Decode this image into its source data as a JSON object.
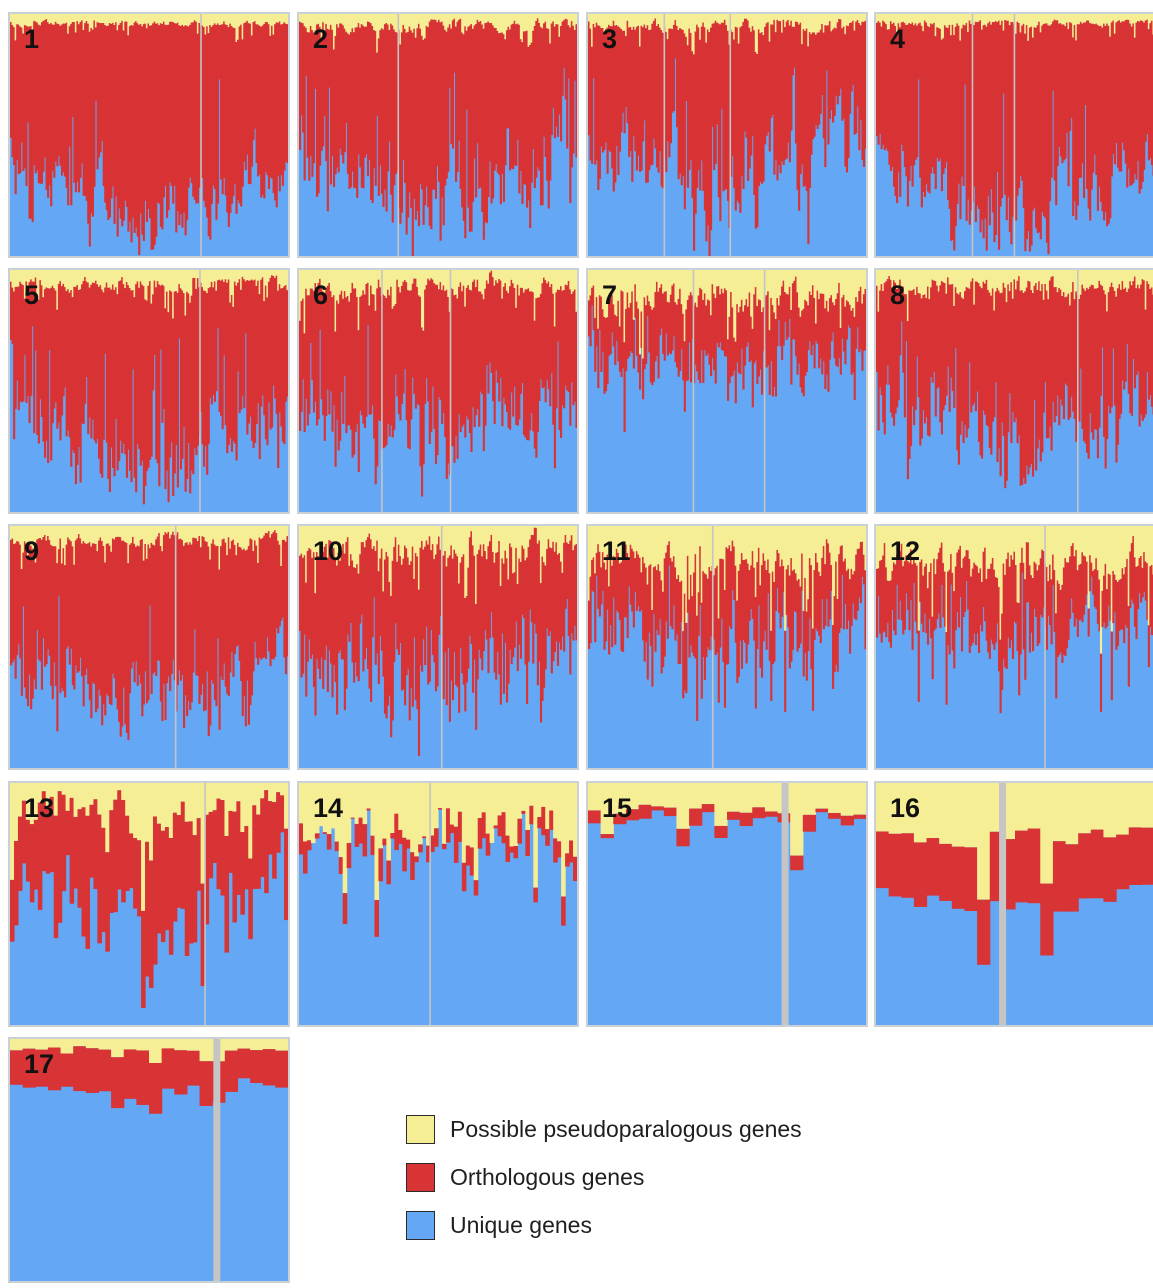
{
  "colors": {
    "pseudoparalogous": "#f6ee95",
    "orthologous": "#d83335",
    "unique": "#64a8f5",
    "gap": "#c5c5c5",
    "frame": "#c9d0d6"
  },
  "legend": {
    "items": [
      {
        "label": "Possible pseudoparalogous genes",
        "color_key": "pseudoparalogous"
      },
      {
        "label": "Orthologous genes",
        "color_key": "orthologous"
      },
      {
        "label": "Unique genes",
        "color_key": "unique"
      }
    ]
  },
  "chart_data": {
    "type": "area",
    "stacking": "stacked-columns",
    "series": [
      {
        "name": "Possible pseudoparalogous genes",
        "color": "#f6ee95"
      },
      {
        "name": "Orthologous genes",
        "color": "#d83335"
      },
      {
        "name": "Unique genes",
        "color": "#64a8f5"
      }
    ],
    "panels": [
      {
        "label": "1",
        "yellow": 0.04,
        "red": 0.82,
        "ruggedness": 0.18,
        "style": "fine",
        "seed": 11
      },
      {
        "label": "2",
        "yellow": 0.05,
        "red": 0.72,
        "ruggedness": 0.28,
        "style": "fine",
        "seed": 23
      },
      {
        "label": "3",
        "yellow": 0.05,
        "red": 0.68,
        "ruggedness": 0.3,
        "style": "fine",
        "seed": 37
      },
      {
        "label": "4",
        "yellow": 0.04,
        "red": 0.8,
        "ruggedness": 0.2,
        "style": "fine",
        "seed": 41
      },
      {
        "label": "5",
        "yellow": 0.06,
        "red": 0.75,
        "ruggedness": 0.25,
        "style": "fine",
        "seed": 53
      },
      {
        "label": "6",
        "yellow": 0.08,
        "red": 0.6,
        "ruggedness": 0.32,
        "style": "fine",
        "seed": 61
      },
      {
        "label": "7",
        "yellow": 0.12,
        "red": 0.3,
        "ruggedness": 0.3,
        "style": "fine",
        "seed": 71
      },
      {
        "label": "8",
        "yellow": 0.07,
        "red": 0.62,
        "ruggedness": 0.3,
        "style": "fine",
        "seed": 83
      },
      {
        "label": "9",
        "yellow": 0.06,
        "red": 0.7,
        "ruggedness": 0.26,
        "style": "fine",
        "seed": 97
      },
      {
        "label": "10",
        "yellow": 0.1,
        "red": 0.55,
        "ruggedness": 0.32,
        "style": "fine",
        "seed": 101
      },
      {
        "label": "11",
        "yellow": 0.14,
        "red": 0.35,
        "ruggedness": 0.3,
        "style": "fine",
        "seed": 113
      },
      {
        "label": "12",
        "yellow": 0.16,
        "red": 0.32,
        "ruggedness": 0.28,
        "style": "fine",
        "seed": 127
      },
      {
        "label": "13",
        "yellow": 0.14,
        "red": 0.42,
        "ruggedness": 0.34,
        "style": "medium",
        "seed": 131
      },
      {
        "label": "14",
        "yellow": 0.22,
        "red": 0.08,
        "ruggedness": 0.3,
        "style": "medium",
        "seed": 149
      },
      {
        "label": "15",
        "yellow": 0.12,
        "red": 0.05,
        "ruggedness": 0.15,
        "style": "coarse",
        "seed": 151
      },
      {
        "label": "16",
        "yellow": 0.22,
        "red": 0.3,
        "ruggedness": 0.12,
        "style": "coarse",
        "seed": 163
      },
      {
        "label": "17",
        "yellow": 0.04,
        "red": 0.2,
        "ruggedness": 0.12,
        "style": "coarse",
        "seed": 173
      }
    ]
  }
}
